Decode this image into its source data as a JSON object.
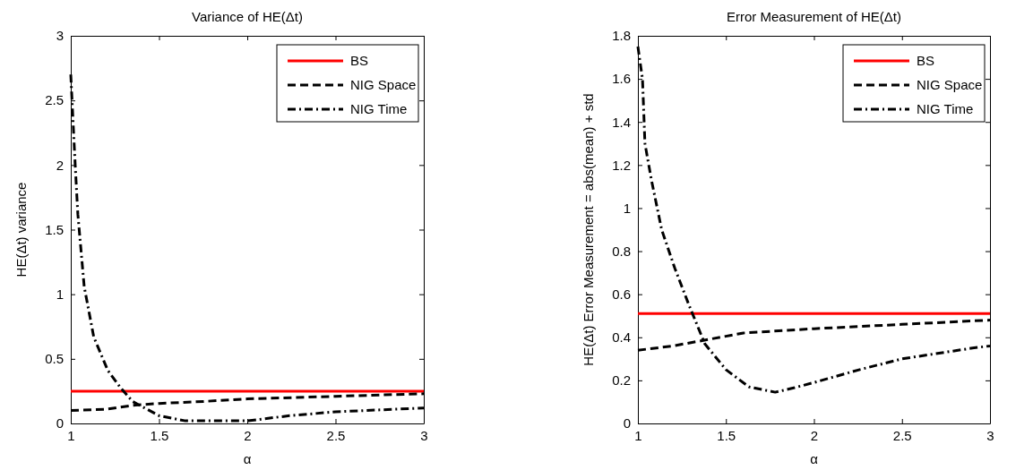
{
  "chart_data": [
    {
      "type": "line",
      "title": "Variance of HE(Δt)",
      "xlabel": "α",
      "ylabel": "HE(Δt) variance",
      "xlim": [
        1,
        3
      ],
      "xticks": [
        1,
        1.5,
        2,
        2.5,
        3
      ],
      "ylim": [
        0,
        3
      ],
      "yticks": [
        0,
        0.5,
        1,
        1.5,
        2,
        2.5,
        3
      ],
      "grid": false,
      "legend": "top right",
      "series": [
        {
          "name": "BS",
          "color": "#ff0000",
          "line_style": "solid",
          "x": [
            1,
            3
          ],
          "values": [
            0.25,
            0.25
          ]
        },
        {
          "name": "NIG Space",
          "color": "#000000",
          "line_style": "dashed",
          "x": [
            1,
            1.2,
            1.35,
            1.5,
            1.75,
            2,
            2.5,
            3
          ],
          "values": [
            0.1,
            0.11,
            0.14,
            0.155,
            0.17,
            0.19,
            0.21,
            0.23
          ]
        },
        {
          "name": "NIG Time",
          "color": "#000000",
          "line_style": "dashdot",
          "x": [
            1,
            1.025,
            1.04,
            1.076,
            1.13,
            1.21,
            1.28,
            1.35,
            1.5,
            1.65,
            2,
            2.24,
            2.5,
            3
          ],
          "values": [
            2.7,
            2.0,
            1.62,
            1.06,
            0.67,
            0.41,
            0.28,
            0.17,
            0.06,
            0.02,
            0.02,
            0.06,
            0.09,
            0.12
          ]
        }
      ]
    },
    {
      "type": "line",
      "title": "Error Measurement of HE(Δt)",
      "xlabel": "α",
      "ylabel": "HE(Δt) Error Measurement = abs(mean) + std",
      "xlim": [
        1,
        3
      ],
      "xticks": [
        1,
        1.5,
        2,
        2.5,
        3
      ],
      "ylim": [
        0,
        1.8
      ],
      "yticks": [
        0,
        0.2,
        0.4,
        0.6,
        0.8,
        1,
        1.2,
        1.4,
        1.6,
        1.8
      ],
      "grid": false,
      "legend": "top right",
      "series": [
        {
          "name": "BS",
          "color": "#ff0000",
          "line_style": "solid",
          "x": [
            1,
            3
          ],
          "values": [
            0.51,
            0.51
          ]
        },
        {
          "name": "NIG Space",
          "color": "#000000",
          "line_style": "dashed",
          "x": [
            1,
            1.2,
            1.4,
            1.6,
            1.8,
            2,
            2.25,
            2.5,
            2.75,
            3
          ],
          "values": [
            0.34,
            0.36,
            0.39,
            0.42,
            0.43,
            0.44,
            0.45,
            0.46,
            0.47,
            0.48
          ]
        },
        {
          "name": "NIG Time",
          "color": "#000000",
          "line_style": "dashdot",
          "x": [
            1,
            1.026,
            1.04,
            1.077,
            1.135,
            1.21,
            1.29,
            1.38,
            1.5,
            1.63,
            1.78,
            1.89,
            2,
            2.26,
            2.5,
            2.9,
            3
          ],
          "values": [
            1.75,
            1.6,
            1.3,
            1.13,
            0.9,
            0.72,
            0.55,
            0.37,
            0.25,
            0.17,
            0.145,
            0.166,
            0.19,
            0.25,
            0.3,
            0.35,
            0.36
          ]
        }
      ]
    }
  ]
}
